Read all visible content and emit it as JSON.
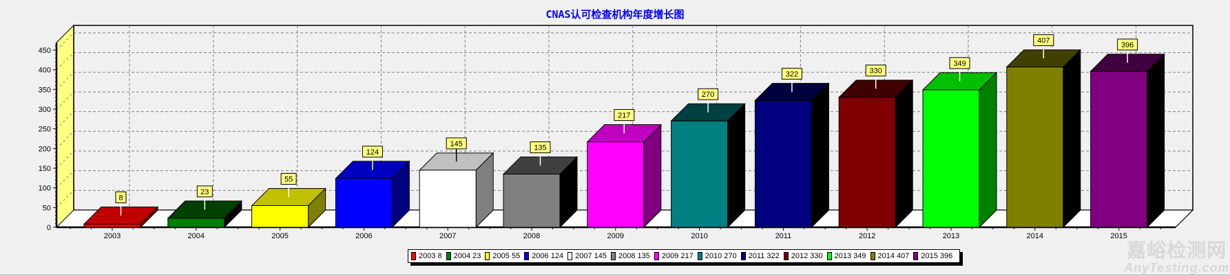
{
  "chart_data": {
    "type": "bar",
    "title": "CNAS认可检查机构年度增长图",
    "xlabel": "",
    "ylabel": "",
    "ylim": [
      0,
      470
    ],
    "yticks": [
      0,
      50,
      100,
      150,
      200,
      250,
      300,
      350,
      400,
      450
    ],
    "grid": true,
    "legend_position": "bottom",
    "categories": [
      "2003",
      "2004",
      "2005",
      "2006",
      "2007",
      "2008",
      "2009",
      "2010",
      "2011",
      "2012",
      "2013",
      "2014",
      "2015"
    ],
    "values": [
      8,
      23,
      55,
      124,
      145,
      135,
      217,
      270,
      322,
      330,
      349,
      407,
      396
    ],
    "colors": {
      "front": [
        "#ff0000",
        "#008000",
        "#ffff00",
        "#0000ff",
        "#ffffff",
        "#808080",
        "#ff00ff",
        "#008080",
        "#000080",
        "#800000",
        "#00ff00",
        "#808000",
        "#800080"
      ],
      "top": [
        "#c00000",
        "#004000",
        "#c0c000",
        "#0000c0",
        "#c0c0c0",
        "#404040",
        "#c000c0",
        "#004040",
        "#000040",
        "#400000",
        "#00c000",
        "#404000",
        "#400040"
      ],
      "side": [
        "#800000",
        "#000000",
        "#808000",
        "#000080",
        "#808080",
        "#000000",
        "#800080",
        "#000000",
        "#000000",
        "#000000",
        "#008000",
        "#000000",
        "#000000"
      ]
    },
    "legend": [
      "2003 8",
      "2004 23",
      "2005 55",
      "2006 124",
      "2007 145",
      "2008 135",
      "2009 217",
      "2010 270",
      "2011 322",
      "2012 330",
      "2013 349",
      "2014 407",
      "2015 396"
    ],
    "data_labels": [
      "8",
      "23",
      "55",
      "124",
      "145",
      "135",
      "217",
      "270",
      "322",
      "330",
      "349",
      "407",
      "396"
    ]
  },
  "watermark": {
    "cn": "嘉峪检测网",
    "en": "AnyTesting.com"
  },
  "style": {
    "wall_color": "#ffff80",
    "floor_color": "#ffffff",
    "plot_bg": "#f0f0f0",
    "label_bg": "#ffff80",
    "title_color": "#0000ff"
  }
}
